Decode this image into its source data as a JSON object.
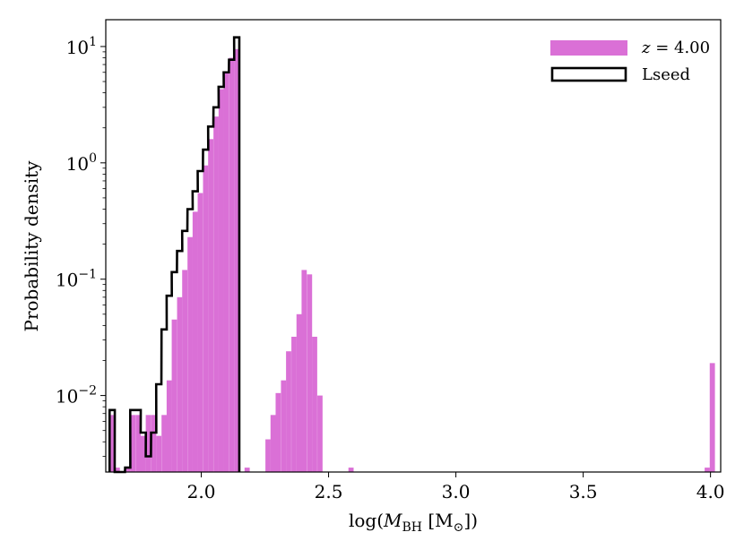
{
  "chart_data": {
    "type": "bar",
    "title": "",
    "xlabel": "log(M_BH [M_⊙])",
    "ylabel": "Probability density",
    "yscale": "log",
    "xlim": [
      1.625,
      4.04
    ],
    "ylim": [
      0.0022,
      17
    ],
    "xticks": [
      2.0,
      2.5,
      3.0,
      3.5,
      4.0
    ],
    "xtick_labels": [
      "2.0",
      "2.5",
      "3.0",
      "3.5",
      "4.0"
    ],
    "yticks": [
      0.01,
      0.1,
      1,
      10
    ],
    "ytick_labels": [
      {
        "base": "10",
        "exp": "−2"
      },
      {
        "base": "10",
        "exp": "−1"
      },
      {
        "base": "10",
        "exp": "0"
      },
      {
        "base": "10",
        "exp": "1"
      }
    ],
    "bin_width": 0.0204,
    "grid": false,
    "legend_position": "top-right",
    "colors": {
      "z_hist": "#da70d6",
      "lseed_step": "#000000"
    },
    "series": [
      {
        "name": "z = 4.00",
        "style": "filled",
        "bins": [
          [
            1.64,
            0.0068
          ],
          [
            1.66,
            0.0024
          ],
          [
            1.701,
            0.0024
          ],
          [
            1.721,
            0.0068
          ],
          [
            1.742,
            0.0068
          ],
          [
            1.762,
            0.0045
          ],
          [
            1.782,
            0.0068
          ],
          [
            1.803,
            0.0068
          ],
          [
            1.823,
            0.0045
          ],
          [
            1.844,
            0.0068
          ],
          [
            1.864,
            0.0135
          ],
          [
            1.884,
            0.045
          ],
          [
            1.905,
            0.07
          ],
          [
            1.925,
            0.12
          ],
          [
            1.946,
            0.23
          ],
          [
            1.966,
            0.38
          ],
          [
            1.986,
            0.55
          ],
          [
            2.007,
            0.95
          ],
          [
            2.027,
            1.6
          ],
          [
            2.048,
            2.5
          ],
          [
            2.068,
            4.3
          ],
          [
            2.088,
            6.0
          ],
          [
            2.109,
            8.0
          ],
          [
            2.129,
            9.5
          ],
          [
            2.17,
            0.0024
          ],
          [
            2.252,
            0.0042
          ],
          [
            2.272,
            0.0068
          ],
          [
            2.292,
            0.0105
          ],
          [
            2.313,
            0.0135
          ],
          [
            2.333,
            0.024
          ],
          [
            2.354,
            0.032
          ],
          [
            2.374,
            0.05
          ],
          [
            2.394,
            0.12
          ],
          [
            2.415,
            0.11
          ],
          [
            2.435,
            0.032
          ],
          [
            2.456,
            0.01
          ],
          [
            2.578,
            0.0024
          ],
          [
            3.977,
            0.0024
          ],
          [
            3.997,
            0.019
          ]
        ]
      },
      {
        "name": "Lseed",
        "style": "step",
        "bins": [
          [
            1.64,
            0.0075
          ],
          [
            1.66,
            0.0
          ],
          [
            1.68,
            0.0
          ],
          [
            1.701,
            0.0024
          ],
          [
            1.721,
            0.0075
          ],
          [
            1.742,
            0.0075
          ],
          [
            1.762,
            0.0048
          ],
          [
            1.782,
            0.003
          ],
          [
            1.803,
            0.0048
          ],
          [
            1.823,
            0.0125
          ],
          [
            1.844,
            0.037
          ],
          [
            1.864,
            0.072
          ],
          [
            1.884,
            0.115
          ],
          [
            1.905,
            0.175
          ],
          [
            1.925,
            0.26
          ],
          [
            1.946,
            0.4
          ],
          [
            1.966,
            0.57
          ],
          [
            1.986,
            0.85
          ],
          [
            2.007,
            1.3
          ],
          [
            2.027,
            2.05
          ],
          [
            2.048,
            3.0
          ],
          [
            2.068,
            4.5
          ],
          [
            2.088,
            6.0
          ],
          [
            2.109,
            7.7
          ],
          [
            2.129,
            12.0
          ]
        ]
      }
    ]
  },
  "legend": [
    {
      "label_prefix": "z",
      "label_value": " = 4.00"
    },
    {
      "label": "Lseed"
    }
  ]
}
